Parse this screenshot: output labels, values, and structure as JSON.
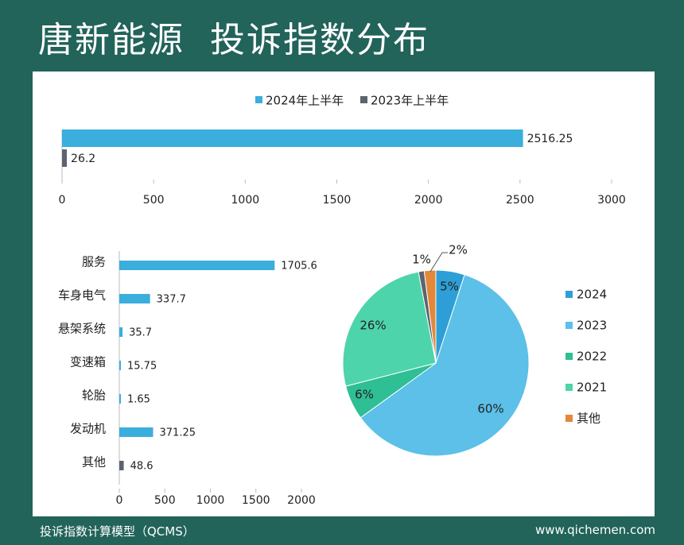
{
  "title": "唐新能源  投诉指数分布",
  "footer": {
    "left": "投诉指数计算模型（QCMS）",
    "right": "www.qichemen.com"
  },
  "colors": {
    "background": "#22635a",
    "series2024": "#3aaedc",
    "series2023": "#5c6470",
    "pie_2024": "#2e9fd6",
    "pie_2023": "#5cc0e8",
    "pie_2022": "#2fbf94",
    "pie_2021": "#4dd4aa",
    "pie_other": "#e2883a",
    "pie_small": "#5c6470"
  },
  "chart_data": [
    {
      "type": "bar",
      "orientation": "horizontal",
      "series": [
        {
          "name": "2024年上半年",
          "values": [
            2516.25
          ]
        },
        {
          "name": "2023年上半年",
          "values": [
            26.2
          ]
        }
      ],
      "value_labels": [
        "2516.25",
        "26.2"
      ],
      "xlim": [
        0,
        3000
      ],
      "ticks": [
        "0",
        "500",
        "1000",
        "1500",
        "2000",
        "2500",
        "3000"
      ],
      "legend": "top"
    },
    {
      "type": "bar",
      "orientation": "horizontal",
      "categories": [
        "服务",
        "车身电气",
        "悬架系统",
        "变速箱",
        "轮胎",
        "发动机",
        "其他"
      ],
      "values": [
        1705.6,
        337.7,
        35.7,
        15.75,
        1.65,
        371.25,
        48.6
      ],
      "value_labels": [
        "1705.6",
        "337.7",
        "35.7",
        "15.75",
        "1.65",
        "371.25",
        "48.6"
      ],
      "xlim": [
        0,
        2000
      ],
      "ticks": [
        "0",
        "500",
        "1000",
        "1500",
        "2000"
      ]
    },
    {
      "type": "pie",
      "slices": [
        {
          "label": "2024",
          "value": 5,
          "text": "5%",
          "color_key": "pie_2024"
        },
        {
          "label": "2023",
          "value": 60,
          "text": "60%",
          "color_key": "pie_2023"
        },
        {
          "label": "2022",
          "value": 6,
          "text": "6%",
          "color_key": "pie_2022"
        },
        {
          "label": "2021",
          "value": 26,
          "text": "26%",
          "color_key": "pie_2021"
        },
        {
          "label": "",
          "value": 1,
          "text": "1%",
          "color_key": "pie_small"
        },
        {
          "label": "其他",
          "value": 2,
          "text": "2%",
          "color_key": "pie_other"
        }
      ],
      "legend": "right"
    }
  ]
}
